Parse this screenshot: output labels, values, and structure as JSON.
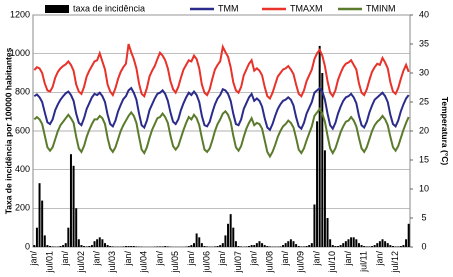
{
  "chart_data": {
    "type": "bar",
    "ylabel": "Taxa de incidência por 100000 habitantes",
    "y2label": "Temperatura (°C)",
    "categories": [
      "jan/",
      null,
      null,
      null,
      null,
      null,
      "jul/01",
      null,
      null,
      null,
      null,
      null,
      "jan/",
      null,
      null,
      null,
      null,
      null,
      "jul/02",
      null,
      null,
      null,
      null,
      null,
      "jan/",
      null,
      null,
      null,
      null,
      null,
      "jul/03",
      null,
      null,
      null,
      null,
      null,
      "jan/",
      null,
      null,
      null,
      null,
      null,
      "jul/04",
      null,
      null,
      null,
      null,
      null,
      "jan/",
      null,
      null,
      null,
      null,
      null,
      "jul/05",
      null,
      null,
      null,
      null,
      null,
      "jan/",
      null,
      null,
      null,
      null,
      null,
      "jul/06",
      null,
      null,
      null,
      null,
      null,
      "jan/",
      null,
      null,
      null,
      null,
      null,
      "jul/07",
      null,
      null,
      null,
      null,
      null,
      "jan/",
      null,
      null,
      null,
      null,
      null,
      "jul/08",
      null,
      null,
      null,
      null,
      null,
      "jan/",
      null,
      null,
      null,
      null,
      null,
      "jul/09",
      null,
      null,
      null,
      null,
      null,
      "jan/",
      null,
      null,
      null,
      null,
      null,
      "jul/10",
      null,
      null,
      null,
      null,
      null,
      "jan/",
      null,
      null,
      null,
      null,
      null,
      "jul/11",
      null,
      null,
      null,
      null,
      null,
      "jan/",
      null,
      null,
      null,
      null,
      null,
      "jul/12",
      null,
      null,
      null,
      null,
      null
    ],
    "ylim": [
      0,
      1200
    ],
    "yticks": [
      0,
      200,
      400,
      600,
      800,
      1000,
      1200
    ],
    "y2lim": [
      0,
      40
    ],
    "y2ticks": [
      0,
      5,
      10,
      15,
      20,
      25,
      30,
      35,
      40
    ],
    "grid": true,
    "series": [
      {
        "name": "taxa de incidência",
        "type": "bar",
        "color": "#000000",
        "values": [
          10,
          100,
          330,
          240,
          60,
          10,
          5,
          3,
          2,
          2,
          5,
          10,
          20,
          100,
          480,
          420,
          200,
          40,
          10,
          5,
          3,
          5,
          10,
          30,
          40,
          50,
          40,
          20,
          10,
          5,
          3,
          2,
          2,
          2,
          3,
          5,
          5,
          5,
          5,
          3,
          2,
          2,
          1,
          1,
          1,
          1,
          2,
          3,
          3,
          3,
          5,
          3,
          2,
          1,
          1,
          1,
          1,
          1,
          2,
          5,
          10,
          20,
          70,
          50,
          20,
          5,
          3,
          2,
          2,
          3,
          5,
          10,
          20,
          60,
          120,
          170,
          100,
          30,
          5,
          3,
          2,
          3,
          5,
          10,
          10,
          20,
          30,
          20,
          10,
          5,
          3,
          2,
          2,
          2,
          3,
          10,
          20,
          30,
          40,
          30,
          15,
          5,
          3,
          3,
          5,
          10,
          20,
          220,
          650,
          1040,
          900,
          500,
          150,
          40,
          10,
          5,
          5,
          10,
          20,
          30,
          40,
          50,
          50,
          40,
          20,
          10,
          5,
          3,
          3,
          5,
          10,
          20,
          30,
          40,
          30,
          20,
          10,
          5,
          3,
          3,
          5,
          10,
          40,
          120
        ]
      },
      {
        "name": "TMM",
        "type": "line",
        "axis": "y2",
        "color": "#2b2b8c",
        "values": [
          26,
          26.3,
          25.8,
          25,
          23.2,
          21.5,
          21.2,
          22,
          23.6,
          24.6,
          25.4,
          26,
          26.5,
          26.8,
          26.2,
          25.2,
          23,
          21.4,
          21,
          22.2,
          23.8,
          24.8,
          25.8,
          26.4,
          26.2,
          26.6,
          26,
          25,
          22.8,
          21.2,
          20.8,
          21.8,
          23.4,
          24.5,
          25.5,
          26,
          27,
          27.4,
          26.6,
          25.4,
          23,
          21,
          20.6,
          21.8,
          23.6,
          24.6,
          25.6,
          26.4,
          26.6,
          27,
          26.4,
          25.2,
          23.2,
          21.6,
          21.2,
          22,
          23.6,
          24.8,
          25.8,
          26.6,
          26.2,
          26.8,
          26.2,
          25,
          22.6,
          21,
          20.8,
          21.6,
          23.2,
          24.6,
          25.6,
          26.2,
          27.2,
          27,
          26.4,
          25.2,
          23,
          21.2,
          21,
          22,
          23.8,
          24.8,
          25.8,
          26.4,
          25.2,
          25.6,
          25.2,
          24.2,
          22.2,
          20.6,
          20.2,
          21.2,
          22.6,
          23.8,
          24.6,
          25.2,
          25.4,
          25.8,
          25.4,
          24.4,
          22.4,
          20.8,
          20.4,
          21.4,
          23,
          24,
          25,
          26.6,
          27,
          27.4,
          26.8,
          25.4,
          23,
          21,
          20.4,
          21.4,
          23,
          24.2,
          25.2,
          25.8,
          26,
          26.4,
          25.8,
          24.8,
          22.6,
          21,
          20.6,
          21.6,
          23.2,
          24.4,
          25.4,
          25.8,
          26.2,
          26.6,
          26,
          25,
          22.8,
          21.2,
          20.8,
          21.8,
          23.4,
          24.6,
          25.6,
          26.2
        ]
      },
      {
        "name": "TMAXM",
        "type": "line",
        "axis": "y2",
        "color": "#e8322a",
        "values": [
          30.5,
          31,
          30.8,
          30,
          28.2,
          27,
          26.8,
          27.6,
          29.2,
          30.2,
          30.8,
          31.2,
          31.5,
          32,
          31.4,
          30.4,
          28,
          26.8,
          26.4,
          27.6,
          29.4,
          30.4,
          31.2,
          32,
          32.2,
          33.4,
          32,
          30.6,
          28,
          26.8,
          26.2,
          27.4,
          29,
          30.2,
          31,
          31.6,
          35,
          33.6,
          32.4,
          30.8,
          28.2,
          26.4,
          26,
          27.4,
          29.4,
          30.4,
          31.2,
          32.4,
          33.5,
          33,
          32.2,
          30.8,
          28.6,
          27.2,
          26.6,
          27.6,
          29.2,
          30.6,
          31.4,
          32.2,
          32,
          33,
          32.4,
          30.8,
          28,
          26.6,
          26.2,
          27.2,
          29,
          30.6,
          31.4,
          32,
          34.5,
          33.6,
          32.8,
          31,
          28.4,
          27,
          26.6,
          27.6,
          29.6,
          30.6,
          31.6,
          32.2,
          30.4,
          30.8,
          30.4,
          29.6,
          27.6,
          26,
          25.6,
          26.6,
          28,
          29.4,
          30,
          30.6,
          30.8,
          31.2,
          30.6,
          29.8,
          28,
          26.4,
          26,
          27,
          28.6,
          29.6,
          30.6,
          32.4,
          33.4,
          34,
          33,
          31.2,
          28.6,
          26.6,
          26,
          27,
          28.8,
          30,
          31,
          31.6,
          31.8,
          32.2,
          31.4,
          30.6,
          28.2,
          26.6,
          26.2,
          27.2,
          28.8,
          30.2,
          31,
          31.6,
          31.4,
          32.6,
          31.8,
          30.8,
          28.4,
          26.8,
          26.4,
          27.4,
          29,
          30.4,
          31.4,
          30.2
        ]
      },
      {
        "name": "TMINM",
        "type": "line",
        "axis": "y2",
        "color": "#5b7b2c",
        "values": [
          22,
          22.4,
          22,
          21.2,
          19.2,
          17.2,
          16.6,
          17.2,
          18.6,
          20,
          21,
          21.6,
          22.2,
          22.8,
          22.2,
          21.4,
          19,
          17,
          16.4,
          17.4,
          19,
          20.2,
          21.2,
          22,
          22,
          22.6,
          22.2,
          21.2,
          18.8,
          17,
          16.4,
          17.2,
          18.6,
          20,
          21,
          21.8,
          22.6,
          23.2,
          22.6,
          21.4,
          19,
          16.8,
          16.2,
          17.2,
          18.8,
          20.2,
          21.2,
          22.2,
          22.4,
          23,
          22.4,
          21.4,
          19.2,
          17.4,
          16.8,
          17.4,
          18.8,
          20.2,
          21.4,
          22.4,
          22,
          22.8,
          22.2,
          21,
          18.8,
          16.8,
          16.4,
          17,
          18.4,
          20,
          21.2,
          22,
          23,
          23.4,
          22.8,
          21.6,
          19.2,
          17.2,
          16.6,
          17.4,
          19,
          20.4,
          21.4,
          22.2,
          21,
          21.4,
          21.2,
          20.4,
          18.4,
          16.4,
          15.6,
          16.4,
          17.6,
          19,
          20,
          20.8,
          21.2,
          21.8,
          21.4,
          20.6,
          18.8,
          16.8,
          16.2,
          17,
          18.4,
          19.6,
          20.8,
          22.6,
          23.2,
          23.8,
          23,
          21.6,
          19.2,
          17,
          16.2,
          17,
          18.4,
          19.8,
          20.8,
          21.6,
          21.8,
          22.4,
          21.8,
          20.8,
          18.8,
          17,
          16.4,
          17.2,
          18.6,
          20,
          21,
          21.6,
          22,
          22.6,
          22,
          21,
          19,
          17.2,
          16.6,
          17.4,
          18.8,
          20.2,
          21.4,
          22.4
        ]
      }
    ]
  }
}
